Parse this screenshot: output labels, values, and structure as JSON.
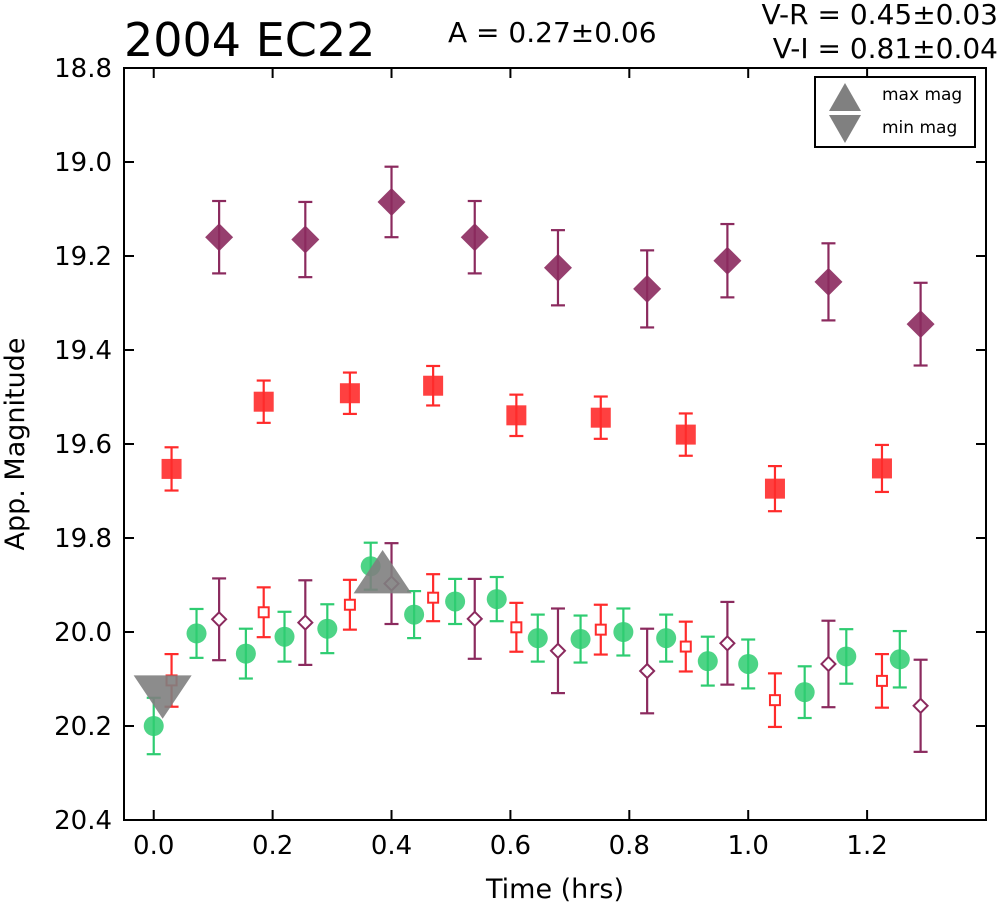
{
  "chart_data": {
    "type": "scatter",
    "title": "2004 EC22",
    "annotations": {
      "amplitude": "A  = 0.27±0.06",
      "v_r": "V-R = 0.45±0.03",
      "v_i": "V-I  = 0.81±0.04"
    },
    "xlabel": "Time (hrs)",
    "ylabel": "App. Magnitude",
    "xlim": [
      -0.05,
      1.4
    ],
    "ylim": [
      20.4,
      18.8
    ],
    "y_inverted": true,
    "x_ticks": [
      "0.0",
      "0.2",
      "0.4",
      "0.6",
      "0.8",
      "1.0",
      "1.2"
    ],
    "y_ticks": [
      "18.8",
      "19.0",
      "19.2",
      "19.4",
      "19.6",
      "19.8",
      "20.0",
      "20.2",
      "20.4"
    ],
    "grid": false,
    "legend": {
      "position": "top-right",
      "entries": [
        {
          "label": "max mag",
          "marker": "triangle-up",
          "color": "#808080"
        },
        {
          "label": "min mag",
          "marker": "triangle-down",
          "color": "#808080"
        }
      ]
    },
    "series": [
      {
        "marker": "filled-diamond",
        "color": "#8b2a5e",
        "opacity": 0.9,
        "x": [
          0.11,
          0.255,
          0.4,
          0.54,
          0.68,
          0.83,
          0.965,
          1.135,
          1.29
        ],
        "y": [
          19.16,
          19.165,
          19.085,
          19.16,
          19.225,
          19.27,
          19.21,
          19.255,
          19.345
        ],
        "err": [
          0.077,
          0.08,
          0.075,
          0.077,
          0.08,
          0.082,
          0.078,
          0.082,
          0.088
        ]
      },
      {
        "marker": "filled-square",
        "color": "#ff2b2b",
        "opacity": 0.9,
        "x": [
          0.03,
          0.185,
          0.33,
          0.47,
          0.61,
          0.752,
          0.895,
          1.045,
          1.225
        ],
        "y": [
          19.653,
          19.51,
          19.492,
          19.476,
          19.539,
          19.544,
          19.58,
          19.695,
          19.652
        ],
        "err": [
          0.046,
          0.045,
          0.044,
          0.042,
          0.044,
          0.045,
          0.045,
          0.048,
          0.05
        ]
      },
      {
        "marker": "filled-circle",
        "color": "#2ecc71",
        "opacity": 0.85,
        "x": [
          0.0,
          0.072,
          0.155,
          0.22,
          0.292,
          0.365,
          0.438,
          0.507,
          0.577,
          0.646,
          0.718,
          0.79,
          0.862,
          0.932,
          1.0,
          1.095,
          1.165,
          1.255
        ],
        "y": [
          20.2,
          20.003,
          20.046,
          20.01,
          19.993,
          19.86,
          19.963,
          19.935,
          19.93,
          20.013,
          20.015,
          20.0,
          20.013,
          20.062,
          20.068,
          20.128,
          20.052,
          20.058
        ],
        "err": [
          0.06,
          0.052,
          0.053,
          0.053,
          0.052,
          0.05,
          0.05,
          0.048,
          0.047,
          0.05,
          0.05,
          0.05,
          0.05,
          0.052,
          0.052,
          0.055,
          0.058,
          0.06
        ]
      },
      {
        "marker": "open-square",
        "color": "#ff2b2b",
        "x": [
          0.03,
          0.185,
          0.33,
          0.47,
          0.61,
          0.752,
          0.895,
          1.045,
          1.225
        ],
        "y": [
          20.103,
          19.958,
          19.942,
          19.927,
          19.99,
          19.995,
          20.031,
          20.145,
          20.104
        ],
        "err": [
          0.056,
          0.053,
          0.053,
          0.05,
          0.052,
          0.053,
          0.053,
          0.057,
          0.057
        ]
      },
      {
        "marker": "open-diamond",
        "color": "#8b2a5e",
        "x": [
          0.11,
          0.255,
          0.4,
          0.54,
          0.68,
          0.83,
          0.965,
          1.135,
          1.29
        ],
        "y": [
          19.973,
          19.98,
          19.897,
          19.972,
          20.04,
          20.083,
          20.024,
          20.068,
          20.157
        ],
        "err": [
          0.087,
          0.09,
          0.086,
          0.085,
          0.09,
          0.09,
          0.088,
          0.092,
          0.098
        ]
      }
    ],
    "extrema": [
      {
        "label": "max mag",
        "marker": "triangle-up",
        "color": "#808080",
        "x": 0.385,
        "y": 19.885
      },
      {
        "label": "min mag",
        "marker": "triangle-down",
        "color": "#808080",
        "x": 0.015,
        "y": 20.125
      }
    ]
  }
}
